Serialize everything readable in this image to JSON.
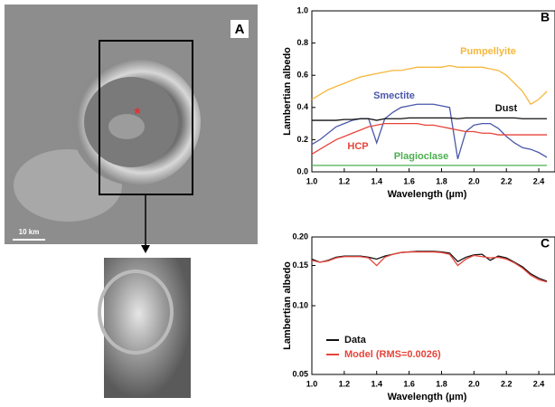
{
  "panel_a": {
    "label": "A",
    "scale_bar": "10 km"
  },
  "chart_data": [
    {
      "type": "line",
      "panel_label": "B",
      "xlabel": "Wavelength (µm)",
      "ylabel": "Lambertian albedo",
      "x": [
        1.0,
        1.05,
        1.1,
        1.15,
        1.2,
        1.25,
        1.3,
        1.35,
        1.4,
        1.45,
        1.5,
        1.55,
        1.6,
        1.65,
        1.7,
        1.75,
        1.8,
        1.85,
        1.9,
        1.95,
        2.0,
        2.05,
        2.1,
        2.15,
        2.2,
        2.25,
        2.3,
        2.35,
        2.4,
        2.45
      ],
      "xlim": [
        1.0,
        2.5
      ],
      "xticks": [
        {
          "value": 1.0,
          "label": "1.0"
        },
        1.2,
        1.4,
        1.6,
        1.8,
        {
          "value": 2.0,
          "label": "2.0"
        },
        2.2,
        2.4
      ],
      "ylim": [
        0,
        1
      ],
      "yticks": [
        {
          "value": 0,
          "label": "0.0"
        },
        0.2,
        0.4,
        0.6,
        0.8,
        {
          "value": 1,
          "label": "1.0"
        }
      ],
      "yscale": "linear",
      "grid": false,
      "series": [
        {
          "name": "Pumpellyite",
          "color": "#f6b73c",
          "values": [
            0.45,
            0.48,
            0.51,
            0.53,
            0.55,
            0.57,
            0.59,
            0.6,
            0.61,
            0.62,
            0.63,
            0.63,
            0.64,
            0.65,
            0.65,
            0.65,
            0.65,
            0.66,
            0.65,
            0.65,
            0.65,
            0.65,
            0.64,
            0.63,
            0.6,
            0.55,
            0.5,
            0.42,
            0.45,
            0.5
          ]
        },
        {
          "name": "Smectite",
          "color": "#4a57a8",
          "values": [
            0.17,
            0.2,
            0.24,
            0.28,
            0.3,
            0.32,
            0.33,
            0.33,
            0.18,
            0.33,
            0.37,
            0.4,
            0.41,
            0.42,
            0.42,
            0.42,
            0.41,
            0.4,
            0.08,
            0.25,
            0.29,
            0.3,
            0.3,
            0.27,
            0.22,
            0.18,
            0.15,
            0.14,
            0.12,
            0.09
          ]
        },
        {
          "name": "Dust",
          "color": "#111111",
          "values": [
            0.32,
            0.32,
            0.32,
            0.32,
            0.325,
            0.325,
            0.33,
            0.33,
            0.32,
            0.33,
            0.33,
            0.33,
            0.335,
            0.335,
            0.335,
            0.335,
            0.335,
            0.335,
            0.33,
            0.335,
            0.335,
            0.335,
            0.335,
            0.335,
            0.335,
            0.335,
            0.33,
            0.33,
            0.33,
            0.33
          ]
        },
        {
          "name": "HCP",
          "color": "#e8443a",
          "values": [
            0.11,
            0.14,
            0.17,
            0.2,
            0.22,
            0.24,
            0.26,
            0.28,
            0.29,
            0.3,
            0.3,
            0.3,
            0.3,
            0.3,
            0.29,
            0.29,
            0.28,
            0.27,
            0.26,
            0.25,
            0.25,
            0.24,
            0.24,
            0.23,
            0.23,
            0.23,
            0.23,
            0.23,
            0.23,
            0.23
          ]
        },
        {
          "name": "Plagioclase",
          "color": "#4caf50",
          "values": [
            0.04,
            0.04,
            0.04,
            0.04,
            0.04,
            0.04,
            0.04,
            0.04,
            0.04,
            0.04,
            0.04,
            0.04,
            0.04,
            0.04,
            0.04,
            0.04,
            0.04,
            0.04,
            0.04,
            0.04,
            0.04,
            0.04,
            0.04,
            0.04,
            0.04,
            0.04,
            0.04,
            0.04,
            0.04,
            0.04
          ]
        }
      ]
    },
    {
      "type": "line",
      "panel_label": "C",
      "xlabel": "Wavelength (µm)",
      "ylabel": "Lambertian albedo",
      "x": [
        1.0,
        1.05,
        1.1,
        1.15,
        1.2,
        1.25,
        1.3,
        1.35,
        1.4,
        1.45,
        1.5,
        1.55,
        1.6,
        1.65,
        1.7,
        1.75,
        1.8,
        1.85,
        1.9,
        1.95,
        2.0,
        2.05,
        2.1,
        2.15,
        2.2,
        2.25,
        2.3,
        2.35,
        2.4,
        2.45
      ],
      "xlim": [
        1.0,
        2.5
      ],
      "xticks": [
        {
          "value": 1.0,
          "label": "1.0"
        },
        1.2,
        1.4,
        1.6,
        1.8,
        {
          "value": 2.0,
          "label": "2.0"
        },
        2.2,
        2.4
      ],
      "ylim": [
        0.05,
        0.2
      ],
      "yticks": [
        0.05,
        {
          "value": 0.1,
          "label": "0.10"
        },
        0.15,
        {
          "value": 0.2,
          "label": "0.20"
        }
      ],
      "yscale": "log",
      "grid": false,
      "legend": "lower left",
      "series": [
        {
          "name": "Data",
          "color": "#111111",
          "values": [
            0.16,
            0.155,
            0.158,
            0.163,
            0.165,
            0.165,
            0.165,
            0.163,
            0.16,
            0.165,
            0.168,
            0.171,
            0.172,
            0.173,
            0.173,
            0.173,
            0.172,
            0.17,
            0.156,
            0.163,
            0.167,
            0.168,
            0.158,
            0.165,
            0.162,
            0.155,
            0.148,
            0.138,
            0.132,
            0.128
          ]
        },
        {
          "name": "Model (RMS=0.0026)",
          "color": "#e8443a",
          "values": [
            0.158,
            0.155,
            0.157,
            0.162,
            0.164,
            0.164,
            0.164,
            0.162,
            0.15,
            0.163,
            0.168,
            0.171,
            0.172,
            0.172,
            0.172,
            0.172,
            0.171,
            0.168,
            0.15,
            0.16,
            0.166,
            0.164,
            0.162,
            0.163,
            0.16,
            0.154,
            0.146,
            0.136,
            0.13,
            0.127
          ]
        }
      ]
    }
  ]
}
